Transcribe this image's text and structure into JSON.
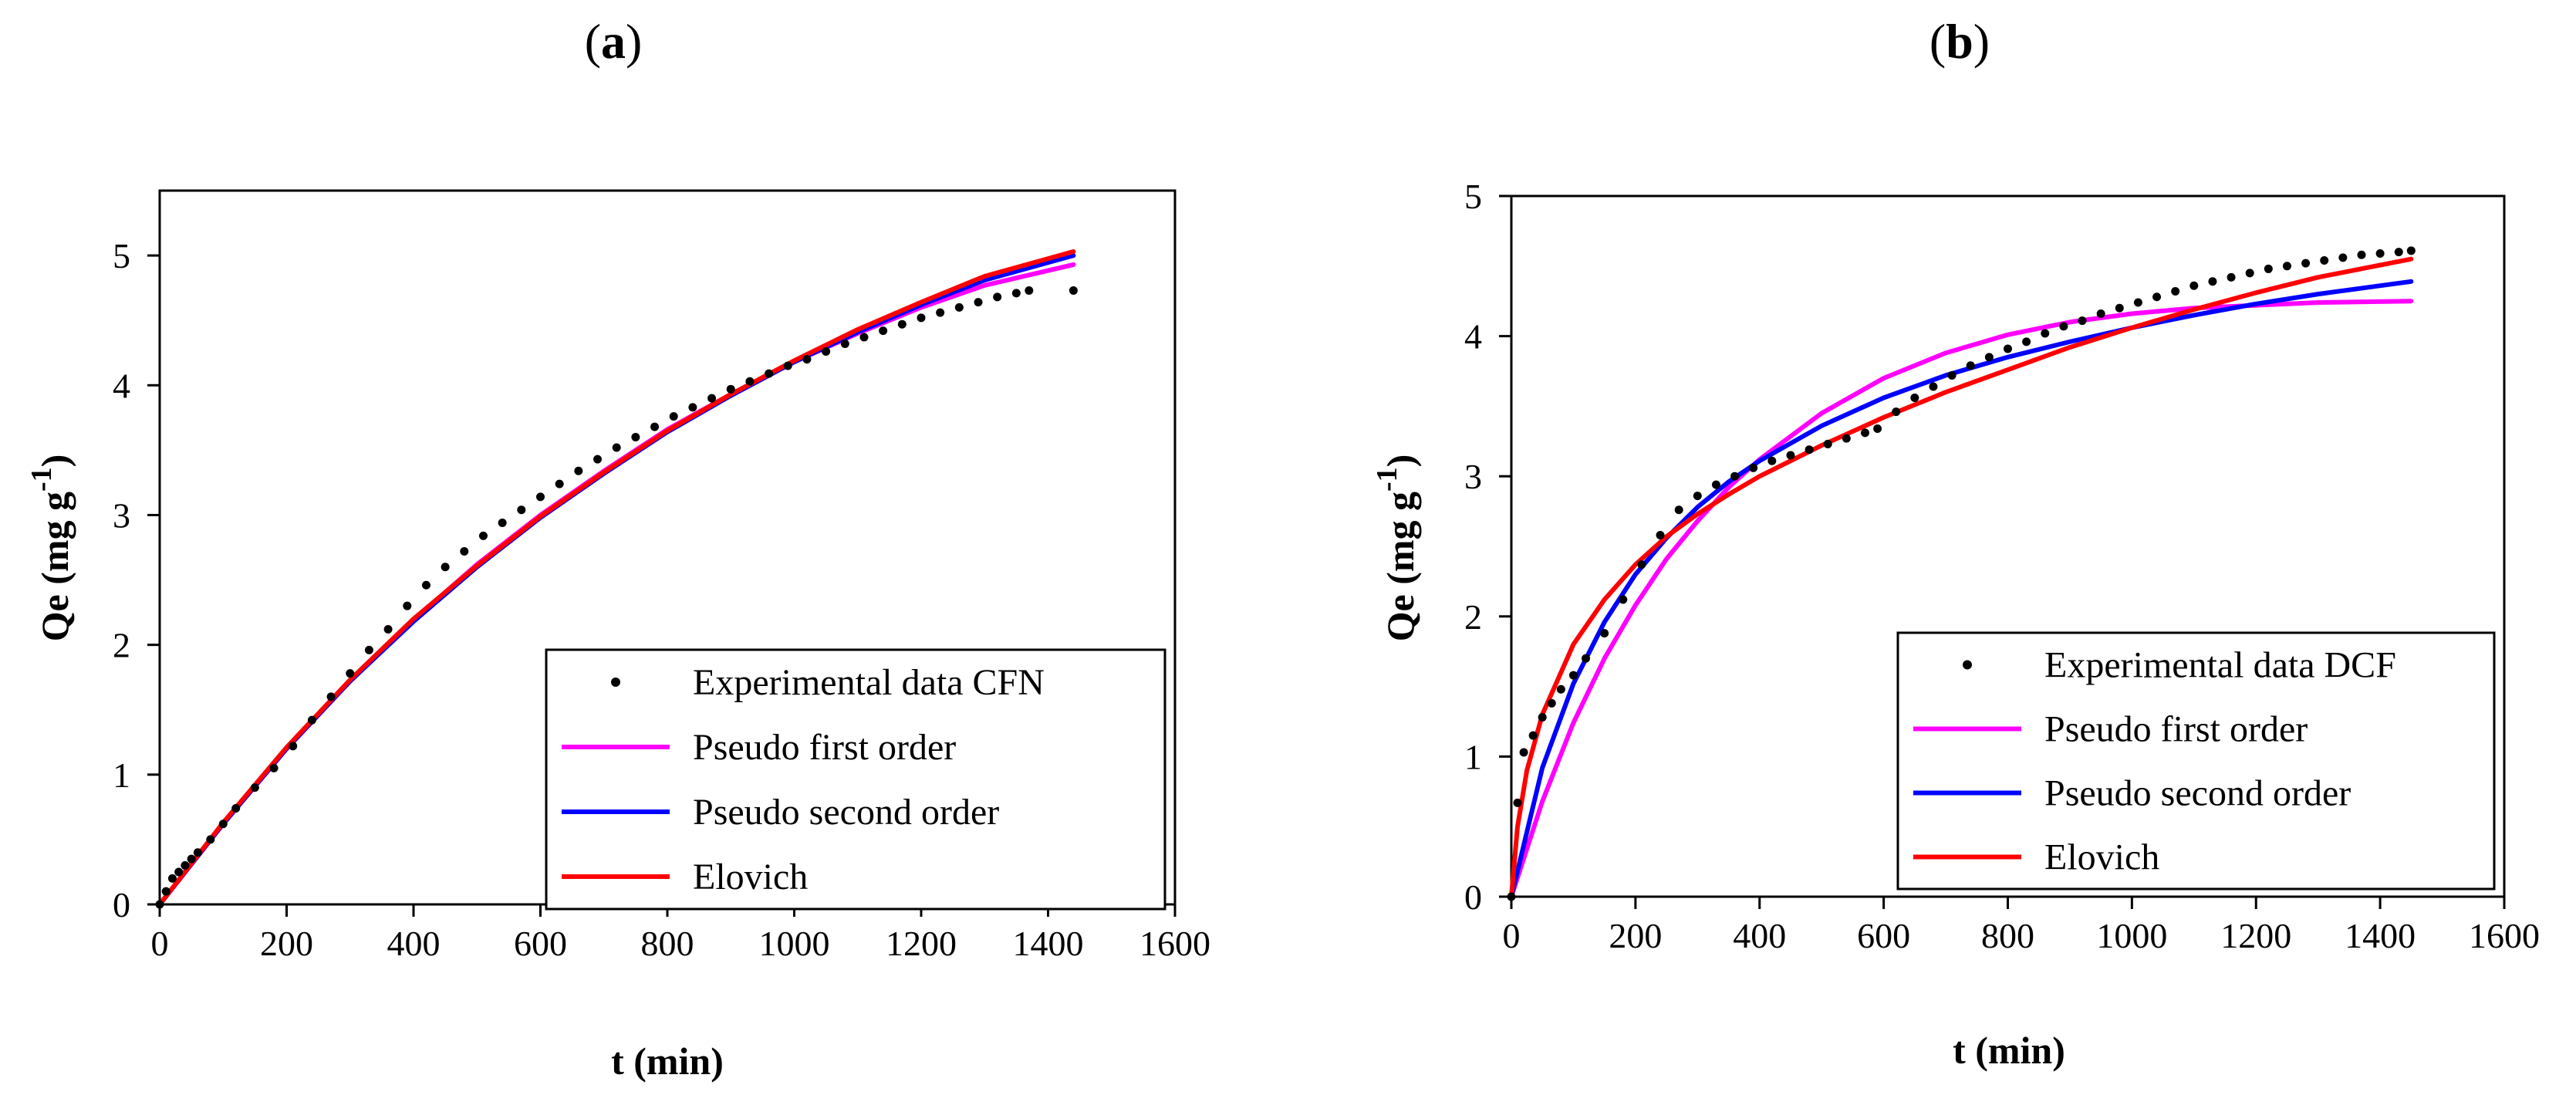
{
  "colors": {
    "experimental": "#000000",
    "pseudo_first": "#ff00ff",
    "pseudo_second": "#0000ff",
    "elovich": "#ff0000"
  },
  "chart_data": [
    {
      "panel_label": "a",
      "type": "line",
      "title": "(a)",
      "xlabel": "t (min)",
      "ylabel": "Qe (mg g",
      "ylabel_superscript": "-1",
      "ylabel_suffix": ")",
      "xlim": [
        0,
        1600
      ],
      "ylim": [
        0,
        5.5
      ],
      "xticks": [
        0,
        200,
        400,
        600,
        800,
        1000,
        1200,
        1400,
        1600
      ],
      "yticks": [
        0,
        1,
        2,
        3,
        4,
        5
      ],
      "grid": false,
      "legend_position": "bottom-right",
      "experimental": {
        "name": "Experimental data CFN",
        "x": [
          0,
          10,
          20,
          30,
          40,
          50,
          60,
          80,
          100,
          120,
          150,
          180,
          210,
          240,
          270,
          300,
          330,
          360,
          390,
          420,
          450,
          480,
          510,
          540,
          570,
          600,
          630,
          660,
          690,
          720,
          750,
          780,
          810,
          840,
          870,
          900,
          930,
          960,
          990,
          1020,
          1050,
          1080,
          1110,
          1140,
          1170,
          1200,
          1230,
          1260,
          1290,
          1320,
          1350,
          1370,
          1440
        ],
        "y": [
          0.0,
          0.1,
          0.2,
          0.25,
          0.3,
          0.35,
          0.4,
          0.5,
          0.62,
          0.74,
          0.9,
          1.05,
          1.22,
          1.42,
          1.6,
          1.78,
          1.96,
          2.12,
          2.3,
          2.46,
          2.6,
          2.72,
          2.84,
          2.94,
          3.04,
          3.14,
          3.24,
          3.34,
          3.43,
          3.52,
          3.6,
          3.68,
          3.76,
          3.83,
          3.9,
          3.97,
          4.03,
          4.09,
          4.15,
          4.2,
          4.26,
          4.32,
          4.37,
          4.42,
          4.47,
          4.52,
          4.56,
          4.6,
          4.64,
          4.68,
          4.71,
          4.73,
          4.73
        ]
      },
      "series": [
        {
          "name": "Pseudo first order",
          "color_key": "pseudo_first",
          "x": [
            0,
            100,
            200,
            300,
            400,
            500,
            600,
            700,
            800,
            900,
            1000,
            1100,
            1200,
            1300,
            1440
          ],
          "y": [
            0,
            0.62,
            1.2,
            1.72,
            2.19,
            2.62,
            3.0,
            3.34,
            3.66,
            3.93,
            4.18,
            4.4,
            4.6,
            4.77,
            4.93
          ]
        },
        {
          "name": "Pseudo second order",
          "color_key": "pseudo_second",
          "x": [
            0,
            100,
            200,
            300,
            400,
            500,
            600,
            700,
            800,
            900,
            1000,
            1100,
            1200,
            1300,
            1440
          ],
          "y": [
            0,
            0.62,
            1.2,
            1.72,
            2.18,
            2.6,
            2.98,
            3.32,
            3.64,
            3.92,
            4.18,
            4.41,
            4.62,
            4.81,
            5.0
          ]
        },
        {
          "name": "Elovich",
          "color_key": "elovich",
          "x": [
            0,
            100,
            200,
            300,
            400,
            500,
            600,
            700,
            800,
            900,
            1000,
            1100,
            1200,
            1300,
            1440
          ],
          "y": [
            0,
            0.63,
            1.21,
            1.73,
            2.2,
            2.61,
            2.99,
            3.33,
            3.65,
            3.93,
            4.19,
            4.43,
            4.64,
            4.84,
            5.03
          ]
        }
      ]
    },
    {
      "panel_label": "b",
      "type": "line",
      "title": "(b)",
      "xlabel": "t (min)",
      "ylabel": "Qe (mg g",
      "ylabel_superscript": "-1",
      "ylabel_suffix": ")",
      "xlim": [
        0,
        1600
      ],
      "ylim": [
        0,
        5
      ],
      "xticks": [
        0,
        200,
        400,
        600,
        800,
        1000,
        1200,
        1400,
        1600
      ],
      "yticks": [
        0,
        1,
        2,
        3,
        4,
        5
      ],
      "grid": false,
      "legend_position": "bottom-right",
      "experimental": {
        "name": "Experimental data DCF",
        "x": [
          0,
          10,
          20,
          35,
          50,
          65,
          80,
          100,
          120,
          150,
          180,
          210,
          240,
          270,
          300,
          330,
          360,
          390,
          420,
          450,
          480,
          510,
          540,
          570,
          590,
          620,
          650,
          680,
          710,
          740,
          770,
          800,
          830,
          860,
          890,
          920,
          950,
          980,
          1010,
          1040,
          1070,
          1100,
          1130,
          1160,
          1190,
          1220,
          1250,
          1280,
          1310,
          1340,
          1370,
          1400,
          1430,
          1450
        ],
        "y": [
          0,
          0.67,
          1.03,
          1.15,
          1.28,
          1.38,
          1.48,
          1.58,
          1.7,
          1.88,
          2.12,
          2.37,
          2.58,
          2.76,
          2.86,
          2.94,
          3.0,
          3.06,
          3.11,
          3.15,
          3.19,
          3.23,
          3.27,
          3.31,
          3.34,
          3.46,
          3.56,
          3.64,
          3.72,
          3.79,
          3.85,
          3.91,
          3.96,
          4.02,
          4.07,
          4.11,
          4.16,
          4.2,
          4.24,
          4.28,
          4.32,
          4.36,
          4.39,
          4.42,
          4.45,
          4.48,
          4.5,
          4.52,
          4.54,
          4.56,
          4.58,
          4.59,
          4.6,
          4.61
        ]
      },
      "series": [
        {
          "name": "Pseudo first order",
          "color_key": "pseudo_first",
          "x": [
            0,
            50,
            100,
            150,
            200,
            250,
            300,
            350,
            400,
            500,
            600,
            700,
            800,
            900,
            1000,
            1100,
            1200,
            1300,
            1450
          ],
          "y": [
            0,
            0.68,
            1.24,
            1.7,
            2.08,
            2.41,
            2.68,
            2.92,
            3.12,
            3.45,
            3.7,
            3.88,
            4.01,
            4.1,
            4.16,
            4.2,
            4.22,
            4.24,
            4.25
          ]
        },
        {
          "name": "Pseudo second order",
          "color_key": "pseudo_second",
          "x": [
            0,
            50,
            100,
            150,
            200,
            250,
            300,
            350,
            400,
            500,
            600,
            700,
            800,
            900,
            1000,
            1100,
            1200,
            1300,
            1450
          ],
          "y": [
            0,
            0.92,
            1.52,
            1.96,
            2.3,
            2.56,
            2.78,
            2.96,
            3.11,
            3.36,
            3.56,
            3.72,
            3.85,
            3.96,
            4.06,
            4.15,
            4.23,
            4.3,
            4.39
          ]
        },
        {
          "name": "Elovich",
          "color_key": "elovich",
          "x": [
            0,
            10,
            25,
            50,
            100,
            150,
            200,
            250,
            300,
            350,
            400,
            500,
            600,
            700,
            800,
            900,
            1000,
            1100,
            1200,
            1300,
            1450
          ],
          "y": [
            0,
            0.5,
            0.9,
            1.3,
            1.8,
            2.12,
            2.37,
            2.57,
            2.73,
            2.87,
            3.0,
            3.22,
            3.42,
            3.6,
            3.76,
            3.92,
            4.06,
            4.19,
            4.31,
            4.42,
            4.55
          ]
        }
      ]
    }
  ]
}
